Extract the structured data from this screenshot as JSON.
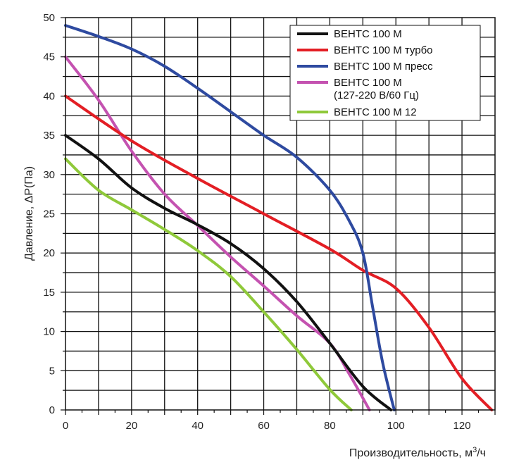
{
  "chart_data": {
    "type": "line",
    "xlabel": "Производительность, м",
    "xlabel_sup": "3",
    "xlabel_suffix": "/ч",
    "ylabel": "Давление, ΔP(Па)",
    "xlim": [
      0,
      130
    ],
    "ylim": [
      0,
      50
    ],
    "x_ticks": [
      "0",
      "20",
      "40",
      "60",
      "80",
      "100",
      "120"
    ],
    "y_ticks": [
      "0",
      "5",
      "10",
      "15",
      "20",
      "25",
      "30",
      "35",
      "40",
      "45",
      "50"
    ],
    "grid": true,
    "legend_position": "top-right",
    "series": [
      {
        "name": "ВЕНТС 100 М",
        "color": "#111111",
        "x": [
          0,
          10,
          20,
          30,
          40,
          50,
          60,
          70,
          80,
          90,
          98.5
        ],
        "y": [
          35,
          32,
          28.3,
          25.7,
          23.6,
          21.2,
          18,
          13.8,
          8.5,
          3,
          0
        ]
      },
      {
        "name": "ВЕНТС 100 М турбо",
        "color": "#e31e24",
        "x": [
          0,
          20,
          40,
          60,
          80,
          90,
          100,
          110,
          120,
          129
        ],
        "y": [
          40,
          34.3,
          29.5,
          25,
          20.5,
          17.8,
          15.5,
          10.5,
          4,
          0
        ]
      },
      {
        "name": "ВЕНТС 100 М пресс",
        "color": "#2e4aa0",
        "x": [
          0,
          10,
          20,
          30,
          40,
          50,
          60,
          70,
          80,
          86,
          90,
          93,
          96,
          99.5
        ],
        "y": [
          49,
          47.6,
          46,
          43.8,
          41,
          38,
          35,
          32.2,
          28,
          24,
          20,
          13,
          6,
          0
        ]
      },
      {
        "name_line1": "ВЕНТС 100 М",
        "name_line2": "(127-220 В/60 Гц)",
        "color": "#c452b0",
        "x": [
          0,
          10,
          20,
          30,
          40,
          50,
          60,
          70,
          80,
          86,
          92
        ],
        "y": [
          45,
          39.5,
          33,
          27.5,
          23.5,
          19.5,
          15.8,
          12,
          8.5,
          4.5,
          0
        ]
      },
      {
        "name": "ВЕНТС 100 М 12",
        "color": "#8fc93a",
        "x": [
          0,
          10,
          20,
          30,
          40,
          50,
          60,
          70,
          80,
          86.5
        ],
        "y": [
          32,
          28,
          25.5,
          23,
          20.3,
          17,
          12.5,
          7.7,
          2.6,
          0
        ]
      }
    ]
  }
}
